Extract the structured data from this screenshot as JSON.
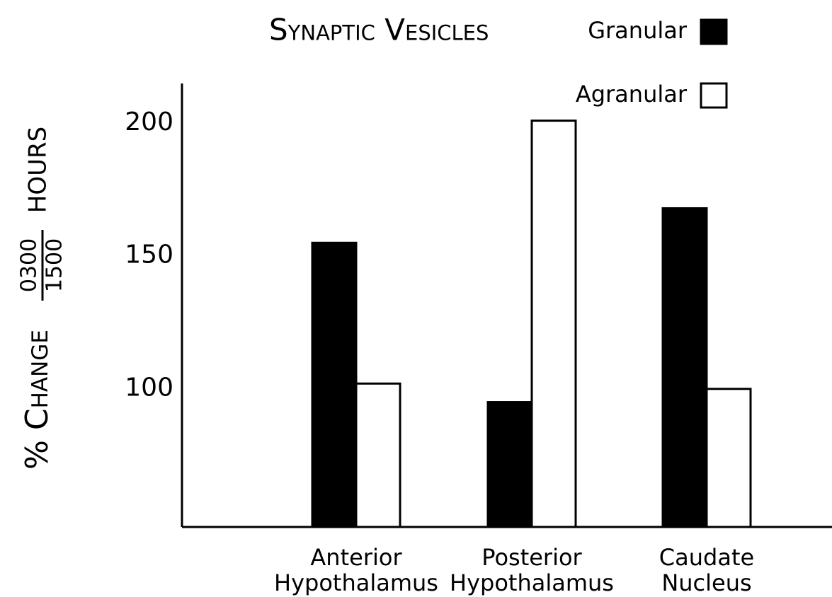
{
  "chart_data": {
    "type": "bar",
    "title": "Synaptic Vesicles",
    "ylabel": "% Change",
    "ylabel_fraction": [
      "0300",
      "1500"
    ],
    "ylabel_unit": "HOURS",
    "categories": [
      "Anterior Hypothalamus",
      "Posterior Hypothalamus",
      "Caudate Nucleus"
    ],
    "series": [
      {
        "name": "Granular",
        "color": "#000000",
        "values": [
          157,
          97,
          170
        ]
      },
      {
        "name": "Agranular",
        "color": "#ffffff",
        "values": [
          104,
          203,
          102
        ]
      }
    ],
    "ylim": [
      50,
      217
    ],
    "yticks": [
      100,
      150,
      200
    ],
    "grid": false,
    "legend": "top-right"
  }
}
